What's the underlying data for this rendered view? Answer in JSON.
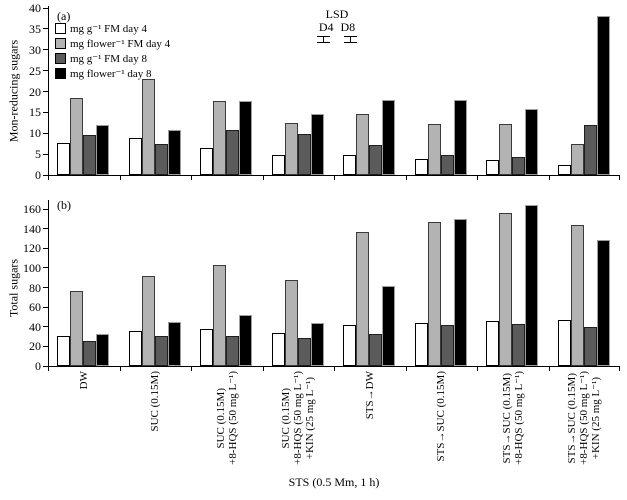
{
  "xaxis": {
    "title": "STS (0.5 Mm, 1 h)",
    "category_lines": [
      [
        "DW"
      ],
      [
        "SUC (0.15M)"
      ],
      [
        "SUC (0.15M)",
        "+8-HQS (50 mg L⁻¹)"
      ],
      [
        "SUC (0.15M)",
        "+8-HQS (50 mg L⁻¹)",
        "+KIN (25 mg L⁻¹)"
      ],
      [
        "STS→DW"
      ],
      [
        "STS→SUC (0.15M)"
      ],
      [
        "STS→SUC (0.15M)",
        "+8-HQS (50 mg L⁻¹)"
      ],
      [
        "STS→SUC (0.15M)",
        "+8-HQS (50 mg L⁻¹)",
        "+KIN (25 mg L⁻¹)"
      ]
    ]
  },
  "chart_data": [
    {
      "type": "bar",
      "panel_label": "(a)",
      "ylabel": "Mon-reducing sugars",
      "xlabel": "STS (0.5 Mm, 1 h)",
      "ylim": [
        0,
        40
      ],
      "yticks": [
        0,
        5,
        10,
        15,
        20,
        25,
        30,
        35,
        40
      ],
      "grid": false,
      "legend_position": "top-left-inside",
      "annotation": {
        "title": "LSD",
        "items": [
          "D4",
          "D8"
        ]
      },
      "categories": [
        "DW",
        "SUC (0.15M)",
        "SUC (0.15M) +8-HQS (50 mg L⁻¹)",
        "SUC (0.15M) +8-HQS (50 mg L⁻¹) +KIN (25 mg L⁻¹)",
        "STS→DW",
        "STS→SUC (0.15M)",
        "STS→SUC (0.15M) +8-HQS (50 mg L⁻¹)",
        "STS→SUC (0.15M) +8-HQS (50 mg L⁻¹) +KIN (25 mg L⁻¹)"
      ],
      "series": [
        {
          "name": "mg g⁻¹ FM day 4",
          "color": "#ffffff",
          "border": "#000000",
          "values": [
            7.7,
            8.9,
            6.4,
            4.9,
            4.7,
            3.9,
            3.7,
            2.5
          ]
        },
        {
          "name": "mg flower⁻¹ FM day 4",
          "color": "#b3b3b3",
          "border": "#3a3a3a",
          "values": [
            18.4,
            23.0,
            17.8,
            12.4,
            14.6,
            12.2,
            12.3,
            7.4
          ]
        },
        {
          "name": "mg g⁻¹ FM day 8",
          "color": "#5b5b5b",
          "border": "#1f1f1f",
          "values": [
            9.6,
            7.4,
            10.8,
            9.9,
            7.3,
            4.9,
            4.2,
            12.0
          ]
        },
        {
          "name": "mg flower⁻¹ day 8",
          "color": "#000000",
          "border": "#9e9e9e",
          "values": [
            12.0,
            10.9,
            17.8,
            14.7,
            17.9,
            18.0,
            15.8,
            38.0
          ]
        }
      ]
    },
    {
      "type": "bar",
      "panel_label": "(b)",
      "ylabel": "Total sugars",
      "xlabel": "STS (0.5 Mm, 1 h)",
      "ylim": [
        0,
        160
      ],
      "yticks": [
        0,
        20,
        40,
        60,
        80,
        100,
        120,
        140,
        160
      ],
      "grid": false,
      "categories": [
        "DW",
        "SUC (0.15M)",
        "SUC (0.15M) +8-HQS (50 mg L⁻¹)",
        "SUC (0.15M) +8-HQS (50 mg L⁻¹) +KIN (25 mg L⁻¹)",
        "STS→DW",
        "STS→SUC (0.15M)",
        "STS→SUC (0.15M) +8-HQS (50 mg L⁻¹)",
        "STS→SUC (0.15M) +8-HQS (50 mg L⁻¹) +KIN (25 mg L⁻¹)"
      ],
      "series": [
        {
          "name": "mg g⁻¹ FM day 4",
          "color": "#ffffff",
          "border": "#000000",
          "values": [
            31,
            36,
            38,
            34,
            42,
            44,
            46,
            47
          ]
        },
        {
          "name": "mg flower⁻¹ FM day 4",
          "color": "#b3b3b3",
          "border": "#3a3a3a",
          "values": [
            76,
            92,
            103,
            88,
            137,
            147,
            156,
            144
          ]
        },
        {
          "name": "mg g⁻¹ FM day 8",
          "color": "#5b5b5b",
          "border": "#1f1f1f",
          "values": [
            26,
            31,
            31,
            29,
            33,
            42,
            43,
            40
          ]
        },
        {
          "name": "mg flower⁻¹ day 8",
          "color": "#000000",
          "border": "#9e9e9e",
          "values": [
            33,
            45,
            52,
            44,
            82,
            150,
            164,
            128
          ]
        }
      ]
    }
  ]
}
